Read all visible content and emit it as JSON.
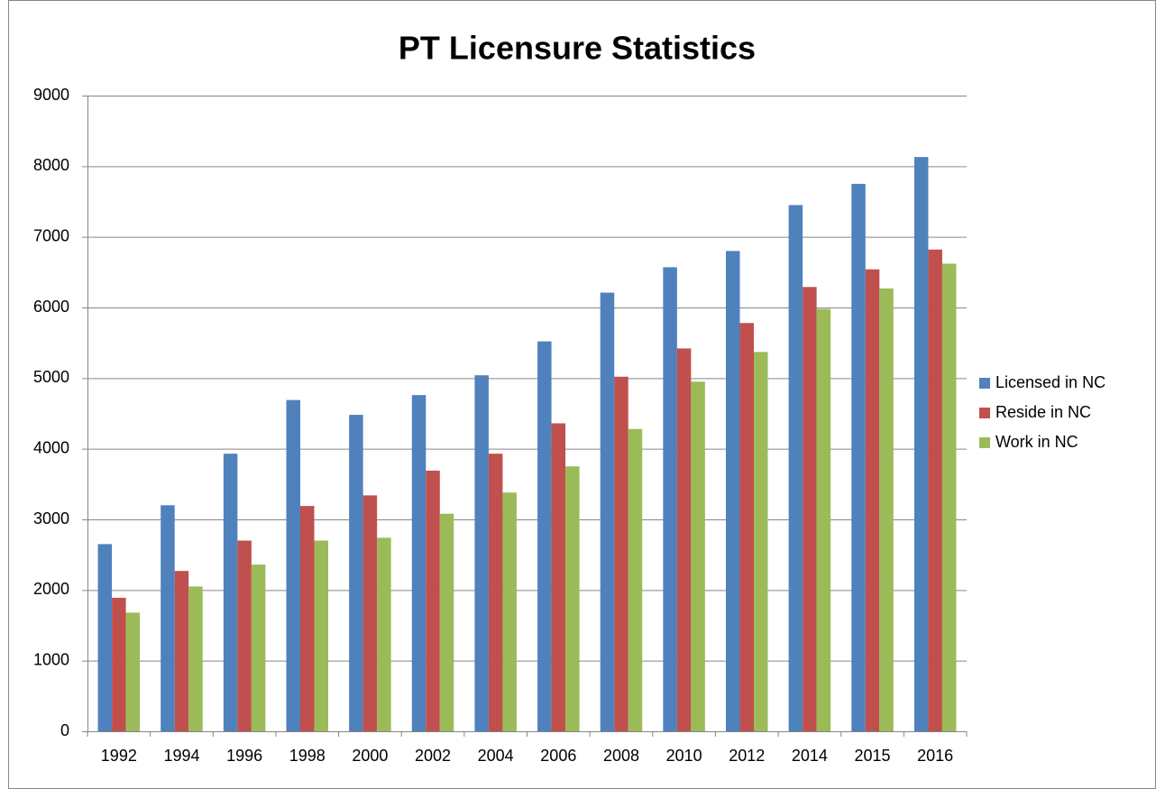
{
  "chart_data": {
    "type": "bar",
    "title": "PT Licensure Statistics",
    "categories": [
      "1992",
      "1994",
      "1996",
      "1998",
      "2000",
      "2002",
      "2004",
      "2006",
      "2008",
      "2010",
      "2012",
      "2014",
      "2015",
      "2016"
    ],
    "series": [
      {
        "name": "Licensed in NC",
        "color": "#4f81bd",
        "values": [
          2650,
          3200,
          3930,
          4690,
          4480,
          4760,
          5040,
          5520,
          6210,
          6570,
          6800,
          7450,
          7750,
          8130
        ]
      },
      {
        "name": "Reside in NC",
        "color": "#c0504d",
        "values": [
          1890,
          2270,
          2700,
          3190,
          3340,
          3690,
          3930,
          4360,
          5020,
          5420,
          5780,
          6290,
          6540,
          6820
        ]
      },
      {
        "name": "Work in NC",
        "color": "#9bbb59",
        "values": [
          1680,
          2050,
          2360,
          2700,
          2740,
          3080,
          3380,
          3750,
          4280,
          4950,
          5370,
          5980,
          6270,
          6620
        ]
      }
    ],
    "ylim": [
      0,
      9000
    ],
    "yticks": [
      0,
      1000,
      2000,
      3000,
      4000,
      5000,
      6000,
      7000,
      8000,
      9000
    ],
    "grid": true,
    "legend": "right"
  }
}
